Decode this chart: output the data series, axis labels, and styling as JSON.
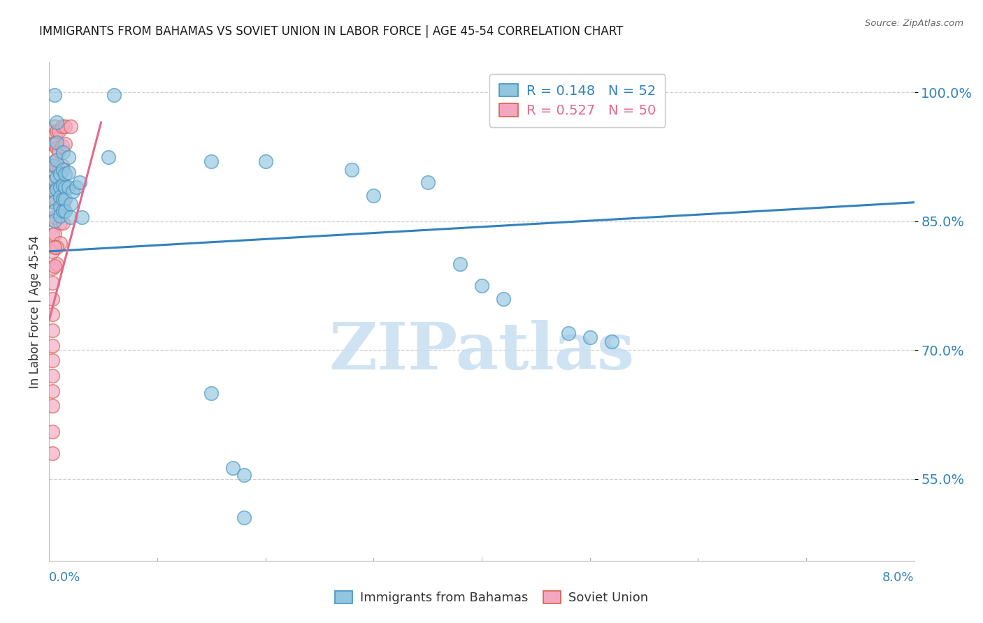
{
  "title": "IMMIGRANTS FROM BAHAMAS VS SOVIET UNION IN LABOR FORCE | AGE 45-54 CORRELATION CHART",
  "source": "Source: ZipAtlas.com",
  "ylabel": "In Labor Force | Age 45-54",
  "label_blue": "Immigrants from Bahamas",
  "label_pink": "Soviet Union",
  "legend_blue": "R = 0.148   N = 52",
  "legend_pink": "R = 0.527   N = 50",
  "blue_color": "#92c5de",
  "pink_color": "#f4a6c0",
  "blue_edge": "#4393c3",
  "pink_edge": "#d6604d",
  "blue_line": "#3182bd",
  "pink_line": "#e8668a",
  "xmin": 0.0,
  "xmax": 0.08,
  "ymin": 0.455,
  "ymax": 1.035,
  "ytick_vals": [
    0.55,
    0.7,
    0.85,
    1.0
  ],
  "ytick_labels": [
    "55.0%",
    "70.0%",
    "85.0%",
    "100.0%"
  ],
  "blue_trend_x": [
    0.0,
    0.08
  ],
  "blue_trend_y": [
    0.815,
    0.872
  ],
  "pink_trend_x": [
    0.0,
    0.0048
  ],
  "pink_trend_y": [
    0.735,
    0.965
  ],
  "blue_scatter": [
    [
      0.0005,
      0.997
    ],
    [
      0.0005,
      0.915
    ],
    [
      0.0005,
      0.898
    ],
    [
      0.0005,
      0.885
    ],
    [
      0.0005,
      0.873
    ],
    [
      0.0005,
      0.862
    ],
    [
      0.0005,
      0.851
    ],
    [
      0.0007,
      0.965
    ],
    [
      0.0007,
      0.942
    ],
    [
      0.0007,
      0.921
    ],
    [
      0.0007,
      0.902
    ],
    [
      0.0007,
      0.887
    ],
    [
      0.001,
      0.905
    ],
    [
      0.001,
      0.89
    ],
    [
      0.001,
      0.878
    ],
    [
      0.001,
      0.867
    ],
    [
      0.001,
      0.856
    ],
    [
      0.0013,
      0.93
    ],
    [
      0.0013,
      0.91
    ],
    [
      0.0013,
      0.892
    ],
    [
      0.0013,
      0.876
    ],
    [
      0.0013,
      0.862
    ],
    [
      0.0015,
      0.905
    ],
    [
      0.0015,
      0.89
    ],
    [
      0.0015,
      0.876
    ],
    [
      0.0015,
      0.862
    ],
    [
      0.0018,
      0.925
    ],
    [
      0.0018,
      0.907
    ],
    [
      0.0018,
      0.89
    ],
    [
      0.002,
      0.87
    ],
    [
      0.002,
      0.855
    ],
    [
      0.0022,
      0.885
    ],
    [
      0.0025,
      0.89
    ],
    [
      0.0028,
      0.895
    ],
    [
      0.003,
      0.855
    ],
    [
      0.0055,
      0.925
    ],
    [
      0.006,
      0.997
    ],
    [
      0.015,
      0.92
    ],
    [
      0.02,
      0.92
    ],
    [
      0.028,
      0.91
    ],
    [
      0.03,
      0.88
    ],
    [
      0.035,
      0.895
    ],
    [
      0.038,
      0.8
    ],
    [
      0.04,
      0.775
    ],
    [
      0.042,
      0.76
    ],
    [
      0.048,
      0.72
    ],
    [
      0.05,
      0.715
    ],
    [
      0.052,
      0.71
    ],
    [
      0.015,
      0.65
    ],
    [
      0.017,
      0.563
    ],
    [
      0.018,
      0.505
    ],
    [
      0.018,
      0.555
    ]
  ],
  "pink_scatter": [
    [
      0.0003,
      0.955
    ],
    [
      0.0003,
      0.94
    ],
    [
      0.0003,
      0.915
    ],
    [
      0.0003,
      0.895
    ],
    [
      0.0003,
      0.873
    ],
    [
      0.0003,
      0.852
    ],
    [
      0.0003,
      0.834
    ],
    [
      0.0003,
      0.815
    ],
    [
      0.0003,
      0.795
    ],
    [
      0.0003,
      0.778
    ],
    [
      0.0003,
      0.76
    ],
    [
      0.0003,
      0.742
    ],
    [
      0.0003,
      0.723
    ],
    [
      0.0003,
      0.705
    ],
    [
      0.0003,
      0.688
    ],
    [
      0.0003,
      0.67
    ],
    [
      0.0005,
      0.96
    ],
    [
      0.0005,
      0.94
    ],
    [
      0.0005,
      0.92
    ],
    [
      0.0005,
      0.898
    ],
    [
      0.0005,
      0.877
    ],
    [
      0.0005,
      0.855
    ],
    [
      0.0005,
      0.835
    ],
    [
      0.0007,
      0.955
    ],
    [
      0.0007,
      0.935
    ],
    [
      0.0007,
      0.913
    ],
    [
      0.0007,
      0.89
    ],
    [
      0.0009,
      0.955
    ],
    [
      0.0009,
      0.932
    ],
    [
      0.0009,
      0.91
    ],
    [
      0.0009,
      0.887
    ],
    [
      0.0012,
      0.96
    ],
    [
      0.0012,
      0.938
    ],
    [
      0.0012,
      0.915
    ],
    [
      0.0015,
      0.96
    ],
    [
      0.0015,
      0.94
    ],
    [
      0.002,
      0.96
    ],
    [
      0.001,
      0.87
    ],
    [
      0.001,
      0.848
    ],
    [
      0.001,
      0.825
    ],
    [
      0.0013,
      0.87
    ],
    [
      0.0013,
      0.848
    ],
    [
      0.0007,
      0.82
    ],
    [
      0.0007,
      0.8
    ],
    [
      0.0005,
      0.82
    ],
    [
      0.0005,
      0.798
    ],
    [
      0.0003,
      0.652
    ],
    [
      0.0003,
      0.635
    ],
    [
      0.0003,
      0.605
    ],
    [
      0.0003,
      0.58
    ]
  ],
  "watermark_text": "ZIPatlas",
  "watermark_color": "#c8dff0",
  "bg_color": "#ffffff",
  "grid_color": "#d0d0d0",
  "axis_label_color": "#3182bd",
  "title_color": "#1a1a1a",
  "ylabel_color": "#333333"
}
